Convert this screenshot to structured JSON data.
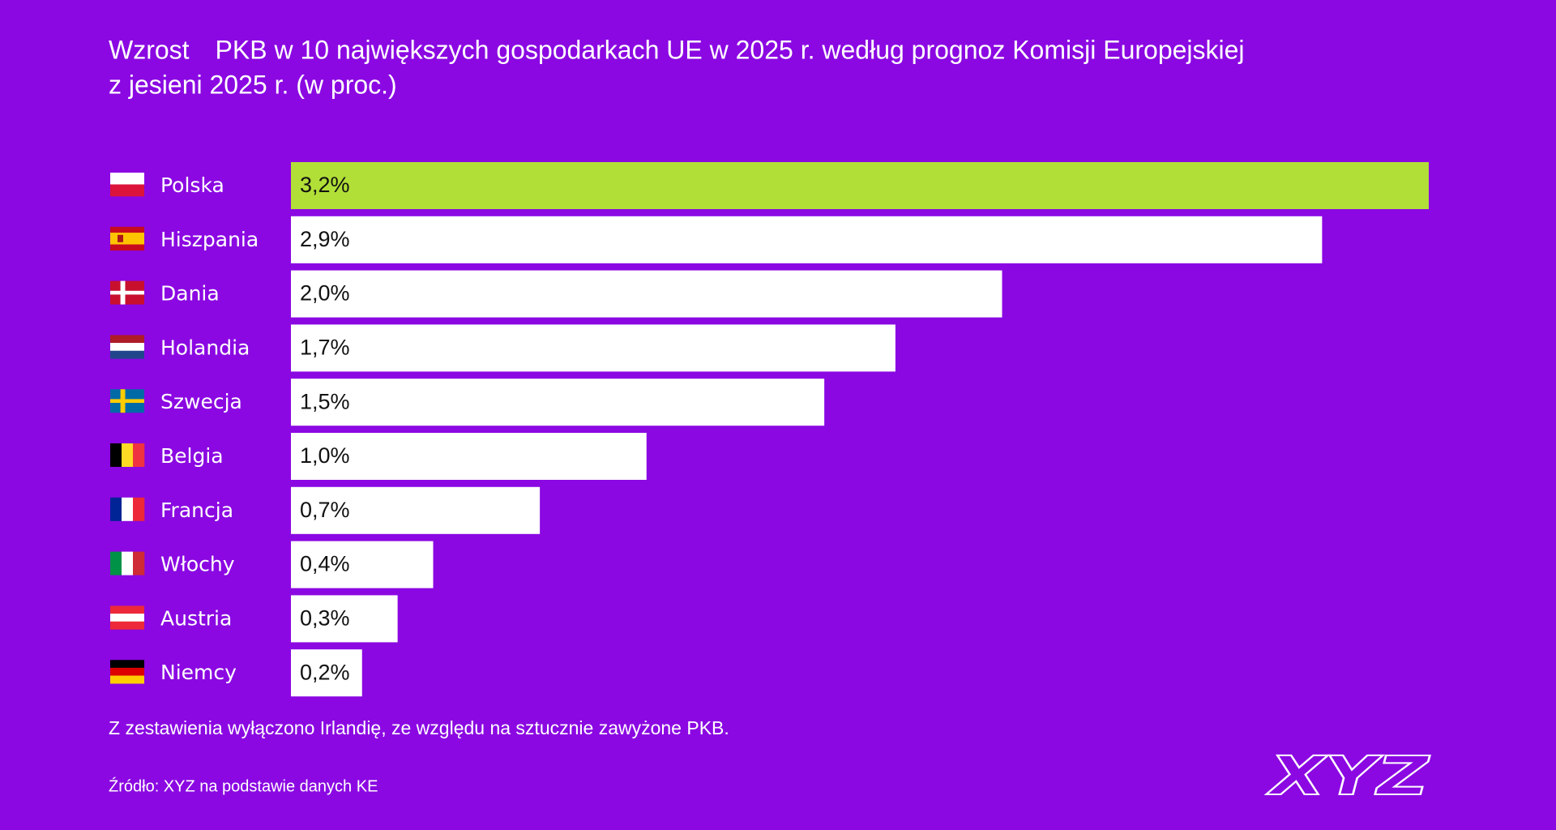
{
  "chart_data": {
    "type": "bar",
    "orientation": "horizontal",
    "title": [
      "Wzrost PKB w 10 największych gospodarkach UE w 2025 r.  według prognoz Komisji Europejskiej",
      "z jesieni 2025 r. (w proc.)"
    ],
    "categories": [
      "Polska",
      "Hiszpania",
      "Dania",
      "Holandia",
      "Szwecja",
      "Belgia",
      "Francja",
      "Włochy",
      "Austria",
      "Niemcy"
    ],
    "values": [
      3.2,
      2.9,
      2.0,
      1.7,
      1.5,
      1.0,
      0.7,
      0.4,
      0.3,
      0.2
    ],
    "value_labels": [
      "3,2%",
      "2,9%",
      "2,0%",
      "1,7%",
      "1,5%",
      "1,0%",
      "0,7%",
      "0,4%",
      "0,3%",
      "0,2%"
    ],
    "colors": [
      "#b1df37",
      "#ffffff",
      "#ffffff",
      "#ffffff",
      "#ffffff",
      "#ffffff",
      "#ffffff",
      "#ffffff",
      "#ffffff",
      "#ffffff"
    ],
    "background": "#8b08e2",
    "note": "Z zestawienia wyłączono Irlandię, ze względu na sztucznie zawyżone PKB.",
    "source": "Źródło: XYZ na podstawie danych KE",
    "logo": "XYZ"
  }
}
